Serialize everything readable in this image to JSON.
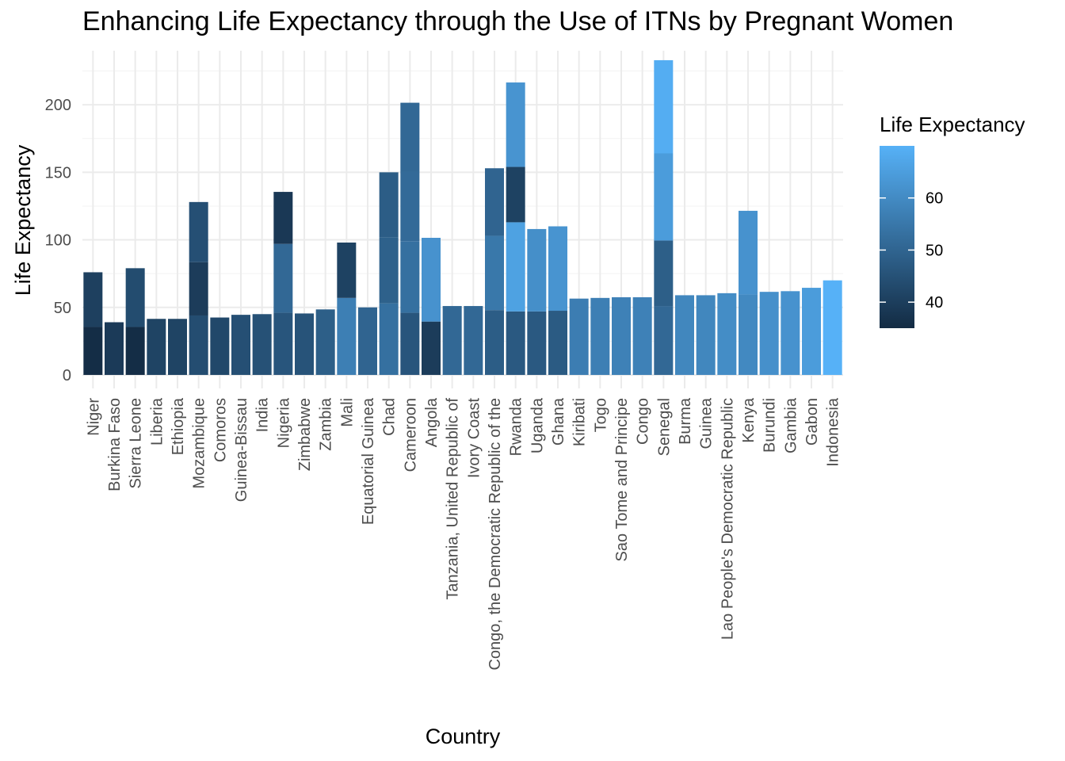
{
  "chart_data": {
    "type": "bar",
    "stacked": true,
    "title": "Enhancing Life Expectancy through the Use of ITNs by Pregnant Women",
    "xlabel": "Country",
    "ylabel": "Life Expectancy",
    "ylim": [
      -10,
      240
    ],
    "yticks": [
      0,
      50,
      100,
      150,
      200
    ],
    "grid": true,
    "legend": {
      "title": "Life Expectancy",
      "placement": "right",
      "type": "colorbar",
      "min": 35,
      "max": 70,
      "ticks": [
        40,
        50,
        60
      ],
      "low_color": "#132B43",
      "high_color": "#56B1F7"
    },
    "categories": [
      "Niger",
      "Burkina Faso",
      "Sierra Leone",
      "Liberia",
      "Ethiopia",
      "Mozambique",
      "Comoros",
      "Guinea-Bissau",
      "India",
      "Nigeria",
      "Zimbabwe",
      "Zambia",
      "Mali",
      "Equatorial Guinea",
      "Chad",
      "Cameroon",
      "Angola",
      "Tanzania, United Republic of",
      "Ivory Coast",
      "Congo, the Democratic Republic of the",
      "Rwanda",
      "Uganda",
      "Ghana",
      "Kiribati",
      "Togo",
      "Sao Tome and Principe",
      "Congo",
      "Senegal",
      "Burma",
      "Guinea",
      "Lao People's Democratic Republic",
      "Kenya",
      "Burundi",
      "Gambia",
      "Gabon",
      "Indonesia"
    ],
    "segments": [
      [
        35.5,
        40.5
      ],
      [
        39
      ],
      [
        35.5,
        43.5
      ],
      [
        41.5
      ],
      [
        41.5
      ],
      [
        44,
        39.5,
        44.5
      ],
      [
        42.5
      ],
      [
        44.5
      ],
      [
        45
      ],
      [
        46,
        51,
        38.5
      ],
      [
        45.5
      ],
      [
        48.5
      ],
      [
        57,
        41
      ],
      [
        50
      ],
      [
        53,
        49,
        48
      ],
      [
        46,
        53,
        51.5,
        51
      ],
      [
        39.5,
        62
      ],
      [
        51
      ],
      [
        51
      ],
      [
        48,
        55,
        50
      ],
      [
        47,
        66,
        41,
        62.5
      ],
      [
        47,
        61
      ],
      [
        47.5,
        62.5
      ],
      [
        56.5
      ],
      [
        57
      ],
      [
        57.5
      ],
      [
        57.5
      ],
      [
        51,
        48.5,
        64.5,
        69
      ],
      [
        59
      ],
      [
        59
      ],
      [
        60.5
      ],
      [
        59.5,
        62
      ],
      [
        61.5
      ],
      [
        62
      ],
      [
        64.5
      ],
      [
        70
      ]
    ]
  }
}
